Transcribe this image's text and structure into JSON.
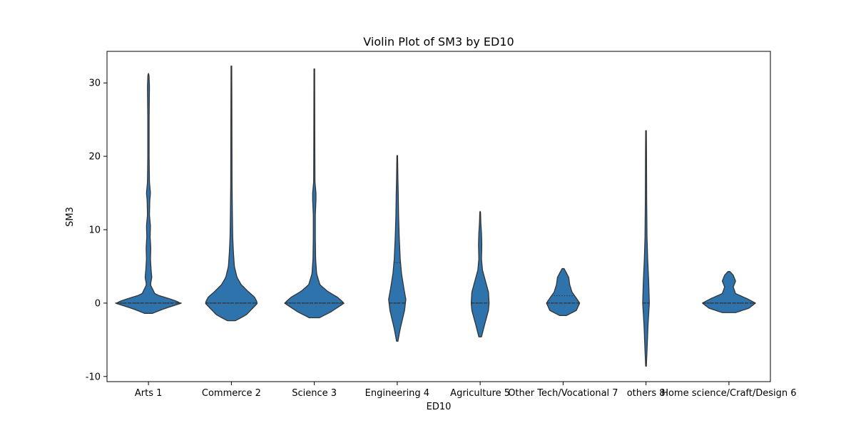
{
  "chart_data": {
    "type": "violin",
    "title": "Violin Plot of SM3 by ED10",
    "xlabel": "ED10",
    "ylabel": "SM3",
    "categories": [
      "Arts 1",
      "Commerce 2",
      "Science 3",
      "Engineering 4",
      "Agriculture 5",
      "Other Tech/Vocational 7",
      "others 8",
      "Home science/Craft/Design 6"
    ],
    "yticks": [
      -10,
      0,
      10,
      20,
      30
    ],
    "ylim": [
      -10.7,
      34.3
    ],
    "grid": false,
    "fill_color": "#2f73ad",
    "edge_color": "#333333",
    "violins": [
      {
        "category": "Arts 1",
        "quartiles": [
          0,
          0,
          0
        ],
        "profile": [
          [
            -1.4,
            0.12
          ],
          [
            -0.8,
            0.45
          ],
          [
            0,
            1.0
          ],
          [
            0.5,
            0.7
          ],
          [
            1.2,
            0.2
          ],
          [
            2.5,
            0.06
          ],
          [
            3.5,
            0.1
          ],
          [
            4.5,
            0.08
          ],
          [
            6,
            0.06
          ],
          [
            7.5,
            0.07
          ],
          [
            9,
            0.05
          ],
          [
            10.5,
            0.06
          ],
          [
            12,
            0.03
          ],
          [
            14,
            0.04
          ],
          [
            15,
            0.06
          ],
          [
            16.5,
            0.03
          ],
          [
            20,
            0.02
          ],
          [
            25,
            0.02
          ],
          [
            29.5,
            0.03
          ],
          [
            31.3,
            0.015
          ]
        ]
      },
      {
        "category": "Commerce 2",
        "quartiles": [
          0,
          0,
          0
        ],
        "profile": [
          [
            -2.4,
            0.12
          ],
          [
            -1.6,
            0.45
          ],
          [
            0,
            0.79
          ],
          [
            0.8,
            0.7
          ],
          [
            1.6,
            0.5
          ],
          [
            2.5,
            0.3
          ],
          [
            3.5,
            0.17
          ],
          [
            5,
            0.09
          ],
          [
            7,
            0.06
          ],
          [
            9,
            0.04
          ],
          [
            12,
            0.03
          ],
          [
            16,
            0.02
          ],
          [
            25,
            0.015
          ],
          [
            32.3,
            0.01
          ]
        ]
      },
      {
        "category": "Science 3",
        "quartiles": [
          0,
          0,
          0
        ],
        "profile": [
          [
            -2.0,
            0.15
          ],
          [
            -1.2,
            0.5
          ],
          [
            0,
            0.9
          ],
          [
            0.8,
            0.7
          ],
          [
            1.6,
            0.4
          ],
          [
            2.5,
            0.17
          ],
          [
            4,
            0.07
          ],
          [
            6,
            0.04
          ],
          [
            9,
            0.03
          ],
          [
            12,
            0.03
          ],
          [
            14,
            0.05
          ],
          [
            15,
            0.05
          ],
          [
            16.5,
            0.02
          ],
          [
            22,
            0.015
          ],
          [
            31.9,
            0.01
          ]
        ]
      },
      {
        "category": "Engineering 4",
        "quartiles": [
          0,
          0,
          5.5
        ],
        "profile": [
          [
            -5.2,
            0.02
          ],
          [
            -3.5,
            0.09
          ],
          [
            -1,
            0.22
          ],
          [
            0.5,
            0.26
          ],
          [
            2,
            0.2
          ],
          [
            4,
            0.13
          ],
          [
            6,
            0.09
          ],
          [
            9,
            0.06
          ],
          [
            12,
            0.04
          ],
          [
            15,
            0.03
          ],
          [
            17,
            0.02
          ],
          [
            20.1,
            0.01
          ]
        ]
      },
      {
        "category": "Agriculture 5",
        "quartiles": [
          0,
          0,
          0
        ],
        "profile": [
          [
            -4.6,
            0.04
          ],
          [
            -3,
            0.13
          ],
          [
            -1,
            0.25
          ],
          [
            0,
            0.27
          ],
          [
            1.5,
            0.25
          ],
          [
            3,
            0.16
          ],
          [
            4.5,
            0.07
          ],
          [
            6,
            0.04
          ],
          [
            8,
            0.05
          ],
          [
            9.5,
            0.04
          ],
          [
            11,
            0.02
          ],
          [
            12.5,
            0.01
          ]
        ]
      },
      {
        "category": "Other Tech/Vocational 7",
        "quartiles": [
          0,
          0,
          1.0
        ],
        "profile": [
          [
            -1.7,
            0.1
          ],
          [
            -1,
            0.4
          ],
          [
            0,
            0.5
          ],
          [
            0.8,
            0.38
          ],
          [
            1.5,
            0.27
          ],
          [
            2.5,
            0.2
          ],
          [
            3.5,
            0.17
          ],
          [
            4.2,
            0.09
          ],
          [
            4.7,
            0.03
          ]
        ]
      },
      {
        "category": "others 8",
        "quartiles": [
          0,
          0,
          0
        ],
        "profile": [
          [
            -8.6,
            0.01
          ],
          [
            -6.5,
            0.03
          ],
          [
            -3,
            0.06
          ],
          [
            0,
            0.1
          ],
          [
            3,
            0.08
          ],
          [
            6,
            0.05
          ],
          [
            9,
            0.03
          ],
          [
            14,
            0.02
          ],
          [
            20,
            0.015
          ],
          [
            23.5,
            0.01
          ]
        ]
      },
      {
        "category": "Home science/Craft/Design 6",
        "quartiles": [
          0,
          0,
          0
        ],
        "profile": [
          [
            -1.3,
            0.2
          ],
          [
            -0.7,
            0.6
          ],
          [
            0,
            0.8
          ],
          [
            0.6,
            0.55
          ],
          [
            1.3,
            0.2
          ],
          [
            2.2,
            0.13
          ],
          [
            3,
            0.2
          ],
          [
            3.8,
            0.13
          ],
          [
            4.3,
            0.03
          ]
        ]
      }
    ]
  }
}
